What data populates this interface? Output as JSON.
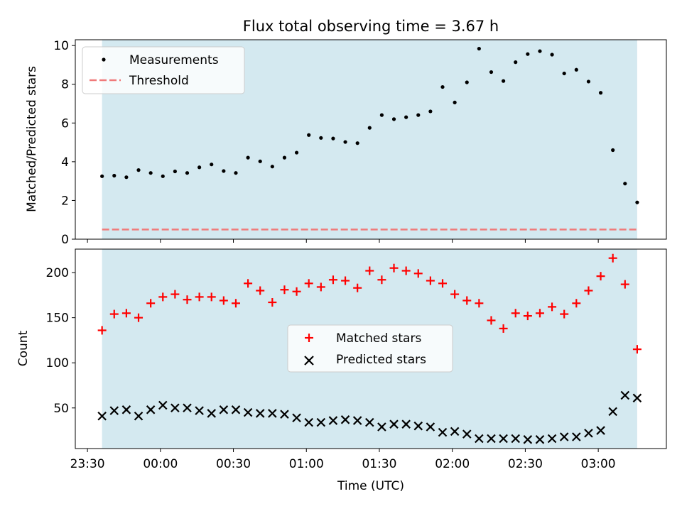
{
  "chart_data": {
    "title": "Flux total observing time = 3.67 h",
    "xlabel": "Time (UTC)",
    "x_ticks": [
      {
        "minutes": -30,
        "label": "23:30"
      },
      {
        "minutes": 0,
        "label": "00:00"
      },
      {
        "minutes": 30,
        "label": "00:30"
      },
      {
        "minutes": 60,
        "label": "01:00"
      },
      {
        "minutes": 90,
        "label": "01:30"
      },
      {
        "minutes": 120,
        "label": "02:00"
      },
      {
        "minutes": 150,
        "label": "02:30"
      },
      {
        "minutes": 180,
        "label": "03:00"
      }
    ],
    "xlim": [
      -35,
      208
    ],
    "observing_window": [
      -24,
      196
    ],
    "x": [
      -24,
      -19,
      -14,
      -9,
      -4,
      1,
      6,
      11,
      16,
      21,
      26,
      31,
      36,
      41,
      46,
      51,
      56,
      61,
      66,
      71,
      76,
      81,
      86,
      91,
      96,
      101,
      106,
      111,
      116,
      121,
      126,
      131,
      136,
      141,
      146,
      151,
      156,
      161,
      166,
      171,
      176,
      181,
      186,
      191,
      196
    ],
    "top": {
      "type": "scatter",
      "ylabel": "Matched/Predicted stars",
      "ylim": [
        0,
        10.3
      ],
      "yticks": [
        0,
        2,
        4,
        6,
        8,
        10
      ],
      "threshold": 0.5,
      "legend": {
        "measurements": "Measurements",
        "threshold": "Threshold"
      },
      "series": [
        {
          "name": "Measurements",
          "values": [
            3.25,
            3.28,
            3.2,
            3.57,
            3.42,
            3.25,
            3.5,
            3.42,
            3.71,
            3.86,
            3.52,
            3.42,
            4.21,
            4.02,
            3.75,
            4.21,
            4.47,
            5.38,
            5.23,
            5.2,
            5.02,
            4.96,
            5.75,
            6.41,
            6.2,
            6.3,
            6.41,
            6.6,
            7.86,
            7.06,
            8.1,
            9.84,
            8.63,
            8.17,
            9.14,
            9.56,
            9.71,
            9.53,
            8.56,
            8.75,
            8.14,
            7.56,
            4.6,
            2.87,
            1.9
          ]
        }
      ]
    },
    "bottom": {
      "type": "scatter",
      "ylabel": "Count",
      "ylim": [
        5,
        226
      ],
      "yticks": [
        50,
        100,
        150,
        200
      ],
      "legend": {
        "matched": "Matched stars",
        "predicted": "Predicted stars"
      },
      "series": [
        {
          "name": "Matched stars",
          "color": "#ff0000",
          "values": [
            136,
            154,
            155,
            150,
            166,
            173,
            176,
            170,
            173,
            173,
            169,
            166,
            188,
            180,
            167,
            181,
            179,
            188,
            184,
            192,
            191,
            183,
            202,
            192,
            205,
            202,
            199,
            191,
            188,
            176,
            169,
            166,
            147,
            138,
            155,
            152,
            155,
            162,
            154,
            166,
            180,
            196,
            216,
            187,
            115
          ]
        },
        {
          "name": "Predicted stars",
          "color": "#000000",
          "values": [
            41,
            47,
            48,
            41,
            48,
            53,
            50,
            50,
            47,
            44,
            48,
            48,
            45,
            44,
            44,
            43,
            39,
            34,
            34,
            36,
            37,
            36,
            34,
            29,
            32,
            32,
            30,
            29,
            23,
            24,
            21,
            16,
            16,
            16,
            16,
            15,
            15,
            16,
            18,
            18,
            22,
            25,
            46,
            64,
            61
          ]
        }
      ]
    }
  },
  "colors": {
    "window": "#d4e9f0",
    "threshold": "#f07a7a",
    "matched": "#ff0000",
    "predicted": "#000000",
    "measurement": "#000000"
  }
}
